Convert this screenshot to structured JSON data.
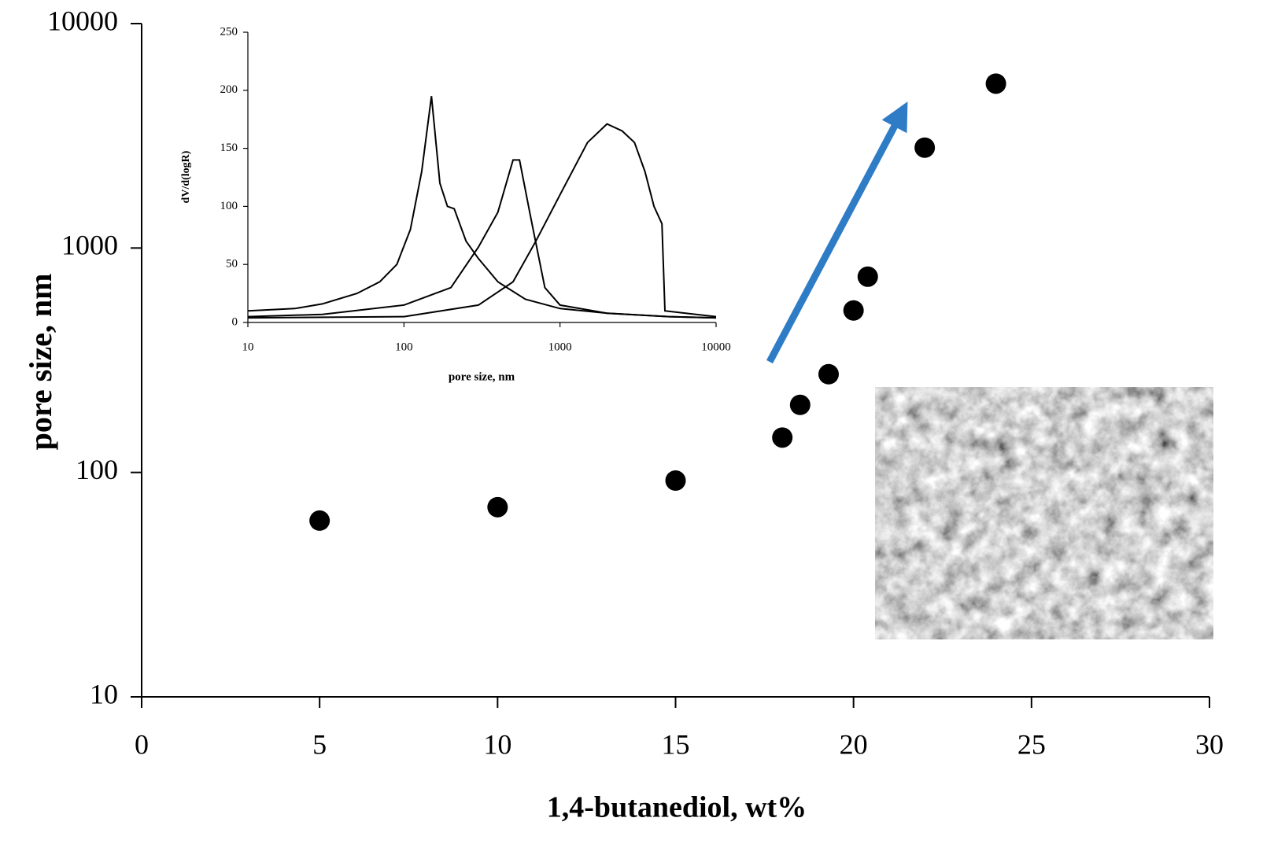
{
  "chart_data": [
    {
      "type": "scatter",
      "xlabel": "1,4-butanediol, wt%",
      "ylabel": "pore size, nm",
      "x": [
        5,
        10,
        15,
        18,
        18.5,
        19.3,
        20,
        20.4,
        22,
        24
      ],
      "values": [
        61,
        70,
        92,
        143,
        200,
        274,
        527,
        745,
        2800,
        5400
      ],
      "color": "#000000",
      "xlim": [
        0,
        30
      ],
      "xticks": [
        0,
        5,
        10,
        15,
        20,
        25,
        30
      ],
      "ylim": [
        10,
        10000
      ],
      "yticks": [
        10,
        100,
        1000,
        10000
      ],
      "yscale": "log"
    },
    {
      "type": "line",
      "xlabel": "pore size, nm",
      "ylabel": "dV/d(logR)",
      "xlim": [
        10,
        10000
      ],
      "xticks": [
        10,
        100,
        1000,
        10000
      ],
      "xscale": "log",
      "ylim": [
        0,
        250
      ],
      "yticks": [
        0,
        50,
        100,
        150,
        200,
        250
      ],
      "series": [
        {
          "color": "#000000",
          "x": [
            10,
            20,
            30,
            50,
            70,
            90,
            110,
            130,
            150,
            170,
            190,
            210,
            250,
            300,
            400,
            600,
            1000,
            2000,
            5000,
            10000
          ],
          "values": [
            10,
            12,
            16,
            25,
            35,
            50,
            80,
            130,
            195,
            120,
            100,
            98,
            70,
            55,
            35,
            20,
            12,
            8,
            5,
            4
          ]
        },
        {
          "color": "#000000",
          "x": [
            10,
            30,
            100,
            200,
            300,
            400,
            500,
            550,
            650,
            800,
            1000,
            2000,
            5000,
            10000
          ],
          "values": [
            5,
            7,
            15,
            30,
            65,
            95,
            140,
            140,
            90,
            30,
            15,
            8,
            5,
            4
          ]
        },
        {
          "color": "#000000",
          "x": [
            10,
            100,
            300,
            500,
            700,
            1000,
            1500,
            2000,
            2500,
            3000,
            3500,
            4000,
            4500,
            4700,
            10000
          ],
          "values": [
            4,
            5,
            15,
            35,
            70,
            110,
            155,
            171,
            165,
            155,
            130,
            100,
            85,
            10,
            5
          ]
        }
      ]
    }
  ]
}
